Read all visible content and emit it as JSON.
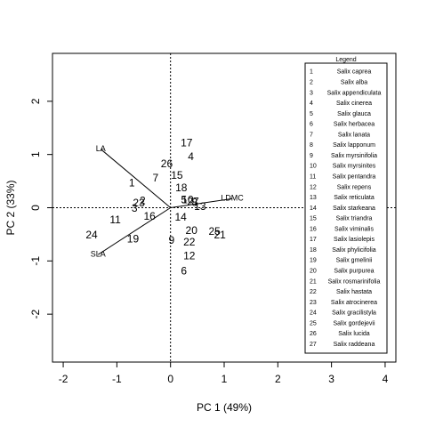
{
  "chart_data": {
    "type": "scatter",
    "subtype": "pca-biplot",
    "xlabel": "PC 1 (49%)",
    "ylabel": "PC 2 (33%)",
    "xlim": [
      -2.2,
      4.2
    ],
    "ylim": [
      -2.9,
      2.9
    ],
    "xticks": [
      -2,
      -1,
      0,
      1,
      2,
      3,
      4
    ],
    "yticks": [
      -2,
      -1,
      0,
      1,
      2
    ],
    "reference_lines": {
      "x": 0,
      "y": 0,
      "style": "dotted"
    },
    "points": [
      {
        "label": "1",
        "x": -0.72,
        "y": 0.45
      },
      {
        "label": "2",
        "x": -0.52,
        "y": 0.12
      },
      {
        "label": "3",
        "x": -0.67,
        "y": -0.02
      },
      {
        "label": "4",
        "x": 0.38,
        "y": 0.95
      },
      {
        "label": "5",
        "x": 0.25,
        "y": 0.14
      },
      {
        "label": "6",
        "x": 0.25,
        "y": -1.2
      },
      {
        "label": "7",
        "x": -0.28,
        "y": 0.55
      },
      {
        "label": "8",
        "x": 0.45,
        "y": 0.09
      },
      {
        "label": "9",
        "x": 0.02,
        "y": -0.62
      },
      {
        "label": "10",
        "x": 0.32,
        "y": 0.14
      },
      {
        "label": "11",
        "x": -1.03,
        "y": -0.24
      },
      {
        "label": "12",
        "x": 0.35,
        "y": -0.92
      },
      {
        "label": "13",
        "x": 0.55,
        "y": 0.01
      },
      {
        "label": "14",
        "x": 0.19,
        "y": -0.19
      },
      {
        "label": "15",
        "x": 0.12,
        "y": 0.6
      },
      {
        "label": "16",
        "x": -0.39,
        "y": -0.17
      },
      {
        "label": "17",
        "x": 0.3,
        "y": 1.21
      },
      {
        "label": "18",
        "x": 0.2,
        "y": 0.36
      },
      {
        "label": "19",
        "x": -0.7,
        "y": -0.6
      },
      {
        "label": "20",
        "x": 0.39,
        "y": -0.44
      },
      {
        "label": "21",
        "x": 0.92,
        "y": -0.52
      },
      {
        "label": "22",
        "x": 0.35,
        "y": -0.66
      },
      {
        "label": "23",
        "x": -0.59,
        "y": 0.08
      },
      {
        "label": "24",
        "x": -1.47,
        "y": -0.52
      },
      {
        "label": "25",
        "x": 0.82,
        "y": -0.46
      },
      {
        "label": "26",
        "x": -0.07,
        "y": 0.81
      },
      {
        "label": "27",
        "x": 0.42,
        "y": 0.1
      }
    ],
    "vectors": [
      {
        "name": "LA",
        "x": -1.3,
        "y": 1.1
      },
      {
        "name": "SLA",
        "x": -1.35,
        "y": -0.88
      },
      {
        "name": "LDMC",
        "x": 1.15,
        "y": 0.17
      }
    ],
    "legend": {
      "title": "Legend",
      "position": "right",
      "entries": [
        {
          "id": "1",
          "name": "Salix caprea"
        },
        {
          "id": "2",
          "name": "Salix alba"
        },
        {
          "id": "3",
          "name": "Salix appendiculata"
        },
        {
          "id": "4",
          "name": "Salix cinerea"
        },
        {
          "id": "5",
          "name": "Salix glauca"
        },
        {
          "id": "6",
          "name": "Salix herbacea"
        },
        {
          "id": "7",
          "name": "Salix lanata"
        },
        {
          "id": "8",
          "name": "Salix lapponum"
        },
        {
          "id": "9",
          "name": "Salix myrsinifolia"
        },
        {
          "id": "10",
          "name": "Salix myrsinites"
        },
        {
          "id": "11",
          "name": "Salix pentandra"
        },
        {
          "id": "12",
          "name": "Salix repens"
        },
        {
          "id": "13",
          "name": "Salix reticulata"
        },
        {
          "id": "14",
          "name": "Salix starkeana"
        },
        {
          "id": "15",
          "name": "Salix triandra"
        },
        {
          "id": "16",
          "name": "Salix viminalis"
        },
        {
          "id": "17",
          "name": "Salix lasiolepis"
        },
        {
          "id": "18",
          "name": "Salix phylicifolia"
        },
        {
          "id": "19",
          "name": "Salix gmelinii"
        },
        {
          "id": "20",
          "name": "Salix purpurea"
        },
        {
          "id": "21",
          "name": "Salix rosmarinifolia"
        },
        {
          "id": "22",
          "name": "Salix hastata"
        },
        {
          "id": "23",
          "name": "Salix atrocinerea"
        },
        {
          "id": "24",
          "name": "Salix gracilistyla"
        },
        {
          "id": "25",
          "name": "Salix gordejevii"
        },
        {
          "id": "26",
          "name": "Salix lucida"
        },
        {
          "id": "27",
          "name": "Salix raddeana"
        }
      ]
    }
  }
}
